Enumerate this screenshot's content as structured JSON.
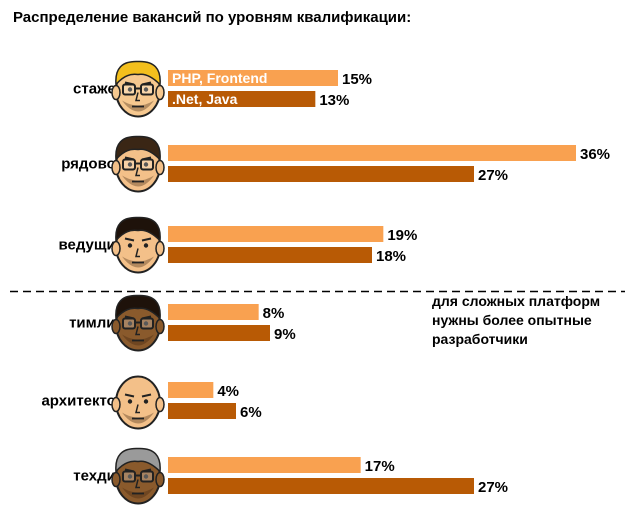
{
  "chart_data": {
    "type": "bar",
    "orientation": "horizontal",
    "title": "Распределение вакансий по уровням квалификации:",
    "categories": [
      "стажер",
      "рядовой",
      "ведущий",
      "тимлид",
      "архитектор",
      "техдир"
    ],
    "series": [
      {
        "name": "PHP, Frontend",
        "values": [
          15,
          36,
          19,
          8,
          4,
          17
        ],
        "color": "#f9a150"
      },
      {
        "name": ".Net, Java",
        "values": [
          13,
          27,
          18,
          9,
          6,
          27
        ],
        "color": "#b85a05"
      }
    ],
    "value_suffix": "%",
    "series_labels_shown_in": "стажер",
    "separator_after": "ведущий",
    "annotation": [
      "для сложных платформ",
      "нужны более опытные",
      "разработчики"
    ],
    "legend": "inside-first-bars",
    "grid": false,
    "xlim": [
      0,
      36
    ]
  },
  "avatars": [
    {
      "category": "стажер",
      "icon": "young-developer-avatar-icon",
      "hair": "#f3bf1d",
      "skin": "#f6c88f",
      "glasses": true
    },
    {
      "category": "рядовой",
      "icon": "developer-avatar-icon",
      "hair": "#3a2615",
      "skin": "#f3c089",
      "glasses": true
    },
    {
      "category": "ведущий",
      "icon": "senior-developer-avatar-icon",
      "hair": "#1e120a",
      "skin": "#f3c089",
      "glasses": false
    },
    {
      "category": "тимлид",
      "icon": "team-lead-avatar-icon",
      "hair": "#1e120a",
      "skin": "#8a5a2c",
      "glasses": true
    },
    {
      "category": "архитектор",
      "icon": "architect-avatar-icon",
      "hair": "none",
      "skin": "#f3c089",
      "glasses": false
    },
    {
      "category": "техдир",
      "icon": "cto-avatar-icon",
      "hair": "#9a9a9a",
      "skin": "#8a5a2c",
      "glasses": true
    }
  ]
}
